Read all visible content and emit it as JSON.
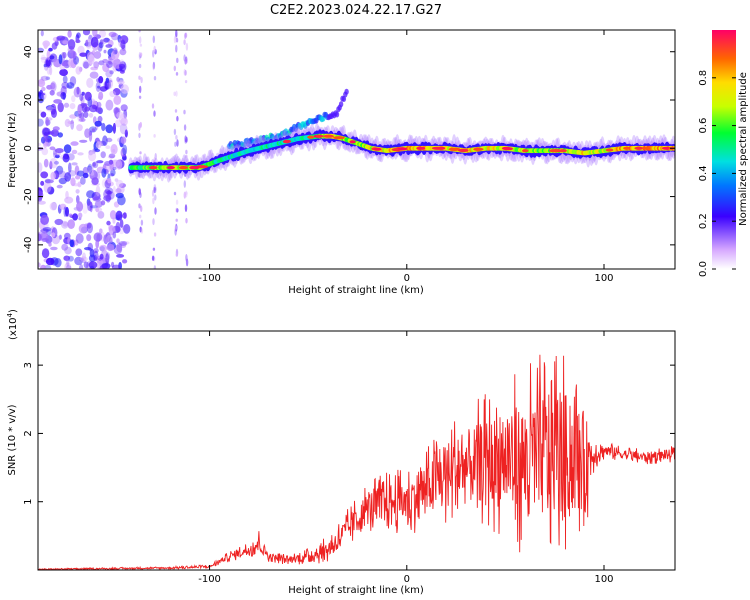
{
  "figure": {
    "title": "C2E2.2023.024.22.17.G27"
  },
  "chart_data": [
    {
      "type": "heatmap",
      "xlabel": "Height of straight line (km)",
      "ylabel": "Frequency (Hz)",
      "xlim": [
        -187,
        136
      ],
      "ylim": [
        -50,
        49
      ],
      "xticks": [
        -100,
        0,
        100
      ],
      "yticks": [
        -40,
        -20,
        0,
        20,
        40
      ],
      "colorbar": {
        "label": "Normalized spectral amplitude",
        "range": [
          0.0,
          1.0
        ],
        "ticks": [
          0.0,
          0.2,
          0.4,
          0.6,
          0.8
        ]
      },
      "ridge": {
        "note_free": true,
        "x": [
          -140,
          -120,
          -105,
          -95,
          -80,
          -65,
          -55,
          -45,
          -38,
          -32,
          -25,
          -18,
          -10,
          0,
          10,
          20,
          30,
          40,
          50,
          60,
          70,
          80,
          90,
          100,
          110,
          120,
          136
        ],
        "frequency": [
          -8,
          -8,
          -8,
          -5,
          -1,
          2,
          4,
          5,
          5,
          4,
          2,
          0,
          -1,
          0,
          0,
          0,
          -1,
          0,
          0,
          -1,
          -1,
          -1,
          -2,
          -1,
          0,
          0,
          0
        ],
        "amplitude": [
          0.6,
          0.75,
          0.7,
          0.55,
          0.55,
          0.55,
          0.5,
          0.7,
          0.8,
          0.75,
          0.7,
          0.8,
          0.85,
          0.9,
          0.9,
          0.85,
          0.85,
          0.85,
          0.8,
          0.75,
          0.75,
          0.75,
          0.85,
          0.8,
          0.9,
          0.95,
          0.95
        ]
      },
      "upper_branch": {
        "x": [
          -90,
          -75,
          -62,
          -55,
          -45,
          -35,
          -30
        ],
        "frequency": [
          1,
          3,
          6,
          9,
          12,
          15,
          25
        ]
      },
      "noise_region": {
        "x": [
          -187,
          -142
        ],
        "extra_columns_x": [
          -135,
          -128,
          -117,
          -112
        ]
      }
    },
    {
      "type": "line",
      "xlabel": "Height of straight line (km)",
      "ylabel": "SNR (10 * v/v)",
      "y_multiplier": "(x10",
      "y_multiplier_exp": "4",
      "y_multiplier_close": ")",
      "xlim": [
        -187,
        136
      ],
      "ylim": [
        0,
        3.5
      ],
      "xticks": [
        -100,
        0,
        100
      ],
      "yticks": [
        1,
        2,
        3
      ],
      "color": "#ee2222",
      "envelope": {
        "x": [
          -187,
          -120,
          -100,
          -90,
          -80,
          -75,
          -70,
          -60,
          -50,
          -40,
          -30,
          -20,
          -10,
          0,
          10,
          20,
          30,
          40,
          50,
          60,
          70,
          75,
          80,
          90,
          95,
          100,
          110,
          120,
          136
        ],
        "mean": [
          0.01,
          0.03,
          0.05,
          0.2,
          0.3,
          0.4,
          0.2,
          0.15,
          0.2,
          0.3,
          0.6,
          0.9,
          1.0,
          1.0,
          1.2,
          1.4,
          1.5,
          1.6,
          1.6,
          1.6,
          1.7,
          1.8,
          1.7,
          1.6,
          1.7,
          1.75,
          1.7,
          1.65,
          1.7
        ],
        "spread": [
          0.01,
          0.02,
          0.03,
          0.08,
          0.12,
          0.2,
          0.08,
          0.08,
          0.12,
          0.2,
          0.3,
          0.4,
          0.45,
          0.5,
          0.6,
          0.8,
          0.9,
          1.0,
          1.2,
          1.4,
          1.6,
          1.7,
          1.5,
          1.2,
          0.25,
          0.15,
          0.12,
          0.12,
          0.12
        ]
      }
    }
  ]
}
